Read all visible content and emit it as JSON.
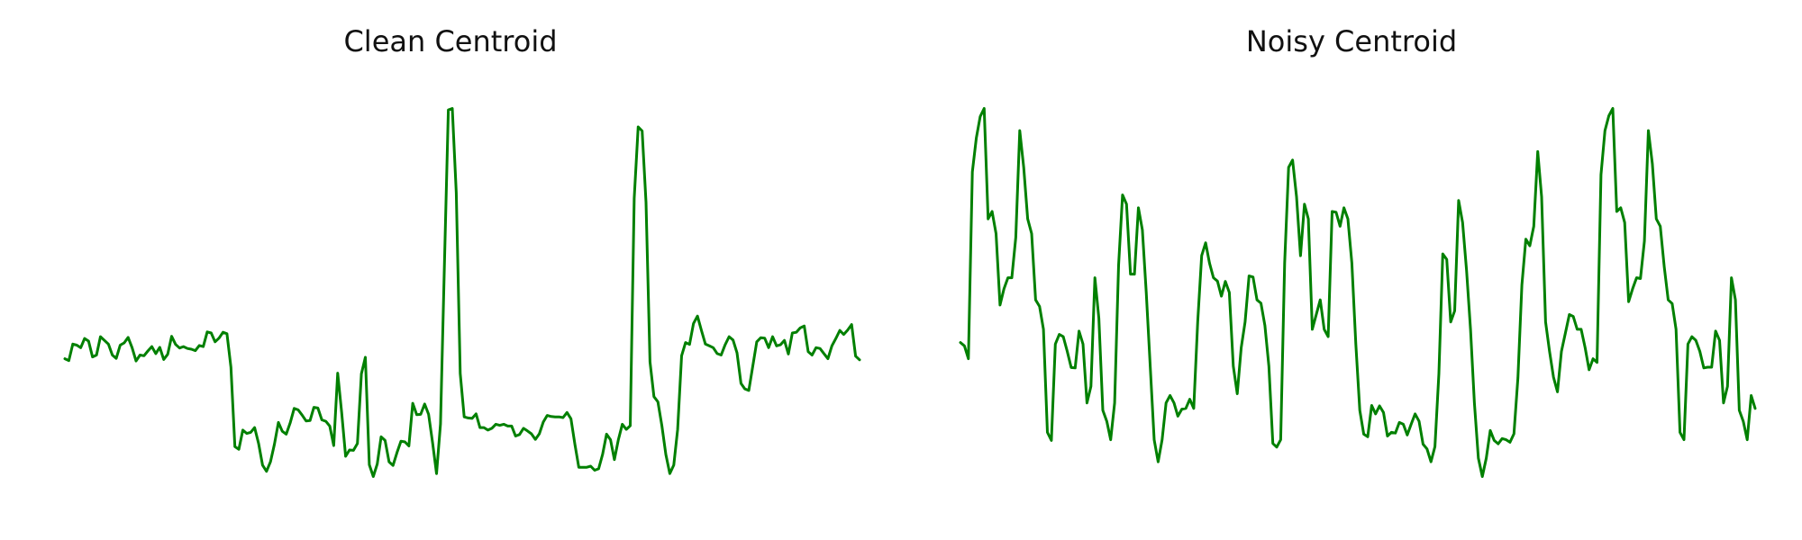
{
  "charts": [
    {
      "type": "line",
      "title": "Clean Centroid",
      "color": "#008000",
      "ylim": [
        -0.06,
        1.06
      ],
      "y": [
        0.32,
        0.315,
        0.36,
        0.357,
        0.35,
        0.375,
        0.368,
        0.325,
        0.33,
        0.38,
        0.37,
        0.36,
        0.33,
        0.321,
        0.357,
        0.363,
        0.378,
        0.35,
        0.314,
        0.33,
        0.328,
        0.341,
        0.353,
        0.334,
        0.351,
        0.318,
        0.332,
        0.381,
        0.359,
        0.349,
        0.353,
        0.348,
        0.346,
        0.342,
        0.356,
        0.353,
        0.393,
        0.39,
        0.366,
        0.376,
        0.392,
        0.388,
        0.297,
        0.081,
        0.074,
        0.126,
        0.117,
        0.12,
        0.133,
        0.09,
        0.031,
        0.014,
        0.04,
        0.088,
        0.147,
        0.123,
        0.115,
        0.146,
        0.185,
        0.181,
        0.167,
        0.151,
        0.152,
        0.188,
        0.186,
        0.154,
        0.15,
        0.137,
        0.084,
        0.281,
        0.174,
        0.055,
        0.072,
        0.071,
        0.09,
        0.279,
        0.324,
        0.032,
        0.0,
        0.034,
        0.108,
        0.098,
        0.04,
        0.03,
        0.065,
        0.096,
        0.094,
        0.083,
        0.199,
        0.168,
        0.169,
        0.197,
        0.169,
        0.092,
        0.008,
        0.143,
        0.58,
        0.996,
        1.0,
        0.771,
        0.28,
        0.162,
        0.159,
        0.158,
        0.17,
        0.133,
        0.133,
        0.126,
        0.131,
        0.142,
        0.139,
        0.142,
        0.137,
        0.137,
        0.11,
        0.114,
        0.131,
        0.124,
        0.116,
        0.101,
        0.116,
        0.148,
        0.166,
        0.163,
        0.162,
        0.162,
        0.16,
        0.174,
        0.157,
        0.087,
        0.025,
        0.025,
        0.025,
        0.028,
        0.017,
        0.021,
        0.06,
        0.115,
        0.1,
        0.046,
        0.1,
        0.142,
        0.128,
        0.138,
        0.756,
        0.95,
        0.939,
        0.745,
        0.312,
        0.217,
        0.203,
        0.138,
        0.06,
        0.008,
        0.031,
        0.128,
        0.328,
        0.364,
        0.359,
        0.416,
        0.436,
        0.397,
        0.36,
        0.355,
        0.35,
        0.334,
        0.33,
        0.358,
        0.38,
        0.371,
        0.336,
        0.253,
        0.238,
        0.234,
        0.3,
        0.366,
        0.377,
        0.376,
        0.35,
        0.38,
        0.355,
        0.358,
        0.37,
        0.333,
        0.39,
        0.392,
        0.404,
        0.409,
        0.339,
        0.33,
        0.35,
        0.348,
        0.334,
        0.32,
        0.355,
        0.375,
        0.397,
        0.386,
        0.398,
        0.413,
        0.327,
        0.317
      ]
    },
    {
      "type": "line",
      "title": "Noisy Centroid",
      "color": "#008000",
      "ylim": [
        -0.06,
        1.06
      ],
      "y": [
        0.364,
        0.355,
        0.32,
        0.828,
        0.92,
        0.978,
        1.0,
        0.7,
        0.72,
        0.66,
        0.466,
        0.51,
        0.54,
        0.54,
        0.65,
        0.94,
        0.84,
        0.7,
        0.66,
        0.48,
        0.462,
        0.4,
        0.12,
        0.098,
        0.36,
        0.386,
        0.38,
        0.34,
        0.296,
        0.295,
        0.395,
        0.36,
        0.2,
        0.245,
        0.54,
        0.43,
        0.18,
        0.15,
        0.1,
        0.2,
        0.574,
        0.765,
        0.74,
        0.55,
        0.55,
        0.73,
        0.67,
        0.5,
        0.3,
        0.1,
        0.04,
        0.1,
        0.2,
        0.22,
        0.2,
        0.164,
        0.183,
        0.185,
        0.21,
        0.185,
        0.42,
        0.6,
        0.635,
        0.58,
        0.54,
        0.531,
        0.49,
        0.53,
        0.5,
        0.3,
        0.225,
        0.35,
        0.42,
        0.545,
        0.542,
        0.48,
        0.471,
        0.41,
        0.3,
        0.09,
        0.08,
        0.1,
        0.58,
        0.84,
        0.86,
        0.76,
        0.6,
        0.74,
        0.7,
        0.4,
        0.44,
        0.48,
        0.4,
        0.38,
        0.72,
        0.718,
        0.68,
        0.73,
        0.7,
        0.58,
        0.36,
        0.18,
        0.115,
        0.108,
        0.193,
        0.17,
        0.192,
        0.174,
        0.11,
        0.12,
        0.118,
        0.147,
        0.142,
        0.113,
        0.142,
        0.17,
        0.15,
        0.088,
        0.075,
        0.04,
        0.081,
        0.28,
        0.605,
        0.59,
        0.42,
        0.45,
        0.75,
        0.69,
        0.56,
        0.4,
        0.2,
        0.05,
        0.0,
        0.05,
        0.125,
        0.098,
        0.089,
        0.103,
        0.1,
        0.093,
        0.116,
        0.268,
        0.52,
        0.645,
        0.627,
        0.68,
        0.883,
        0.76,
        0.42,
        0.34,
        0.27,
        0.23,
        0.34,
        0.39,
        0.44,
        0.435,
        0.4,
        0.4,
        0.35,
        0.29,
        0.32,
        0.31,
        0.82,
        0.94,
        0.98,
        1.0,
        0.72,
        0.73,
        0.69,
        0.475,
        0.51,
        0.54,
        0.538,
        0.64,
        0.94,
        0.85,
        0.7,
        0.68,
        0.57,
        0.48,
        0.47,
        0.4,
        0.12,
        0.1,
        0.36,
        0.38,
        0.37,
        0.34,
        0.295,
        0.297,
        0.297,
        0.395,
        0.37,
        0.2,
        0.245,
        0.54,
        0.48,
        0.18,
        0.15,
        0.1,
        0.22,
        0.185
      ]
    }
  ]
}
